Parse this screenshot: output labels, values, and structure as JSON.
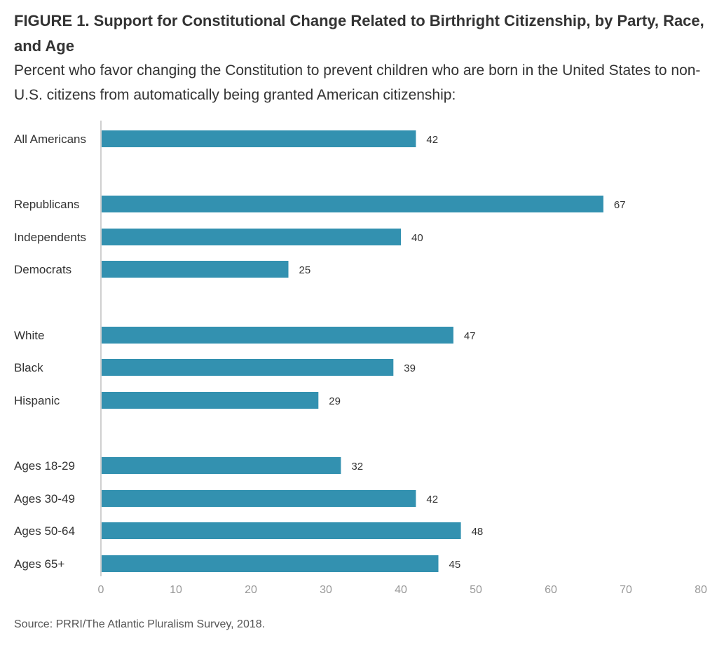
{
  "figure": {
    "title": "FIGURE 1.  Support for Constitutional Change Related to Birthright Citizenship, by Party, Race, and Age",
    "subtitle": "Percent who favor changing the Constitution to prevent children who are born in the United States to non-U.S. citizens from automatically being granted American citizenship:",
    "source": "Source: PRRI/The Atlantic Pluralism Survey, 2018."
  },
  "colors": {
    "bar": "#3391b0",
    "axis_line": "#d0d0d0",
    "label_text": "#333333",
    "tick_text": "#999999"
  },
  "chart_data": {
    "type": "bar",
    "orientation": "horizontal",
    "title": "FIGURE 1.  Support for Constitutional Change Related to Birthright Citizenship, by Party, Race, and Age",
    "subtitle": "Percent who favor changing the Constitution to prevent children who are born in the United States to non-U.S. citizens from automatically being granted American citizenship:",
    "categories": [
      "All Americans",
      "Republicans",
      "Independents",
      "Democrats",
      "White",
      "Black",
      "Hispanic",
      "Ages 18-29",
      "Ages 30-49",
      "Ages 50-64",
      "Ages 65+"
    ],
    "groups": [
      [
        "All Americans"
      ],
      [
        "Republicans",
        "Independents",
        "Democrats"
      ],
      [
        "White",
        "Black",
        "Hispanic"
      ],
      [
        "Ages 18-29",
        "Ages 30-49",
        "Ages 50-64",
        "Ages 65+"
      ]
    ],
    "values": [
      42,
      67,
      40,
      25,
      47,
      39,
      29,
      32,
      42,
      48,
      45
    ],
    "xlim": [
      0,
      80
    ],
    "xticks": [
      0,
      10,
      20,
      30,
      40,
      50,
      60,
      70,
      80
    ],
    "xlabel": "",
    "ylabel": "",
    "grid": false,
    "legend": "none",
    "data_labels": true
  }
}
